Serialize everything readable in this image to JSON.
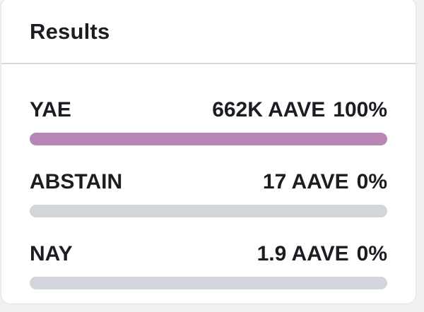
{
  "page": {
    "background": "#f0f0f2"
  },
  "card": {
    "background": "#ffffff",
    "border_color": "#e3e4e8"
  },
  "header": {
    "title": "Results"
  },
  "chart_data": {
    "type": "bar",
    "title": "Results",
    "categories": [
      "YAE",
      "ABSTAIN",
      "NAY"
    ],
    "values": [
      100,
      0,
      0
    ],
    "value_labels": [
      "662K AAVE",
      "17 AAVE",
      "1.9 AAVE"
    ],
    "percent_labels": [
      "100%",
      "0%",
      "0%"
    ],
    "xlabel": "",
    "ylabel": "",
    "ylim": [
      0,
      100
    ]
  },
  "results": {
    "token": "AAVE",
    "text_color": "#1a1d21",
    "track_color": "#d2d6db",
    "divider_color": "#d8dade",
    "rows": [
      {
        "label": "YAE",
        "amount": "662K AAVE",
        "percent": "100%",
        "value": 100,
        "bar_color": "#b786b5"
      },
      {
        "label": "ABSTAIN",
        "amount": "17 AAVE",
        "percent": "0%",
        "value": 0,
        "bar_color": "#b786b5"
      },
      {
        "label": "NAY",
        "amount": "1.9 AAVE",
        "percent": "0%",
        "value": 0,
        "bar_color": "#b786b5"
      }
    ]
  }
}
